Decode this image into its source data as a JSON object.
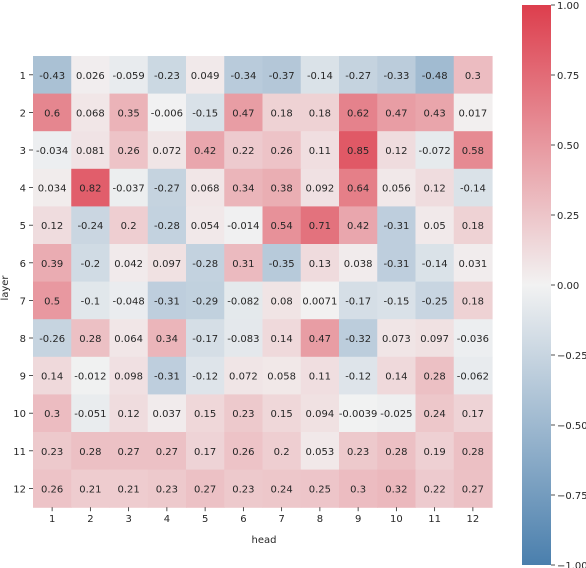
{
  "chart_data": {
    "type": "heatmap",
    "xlabel": "head",
    "ylabel": "layer",
    "x_categories": [
      "1",
      "2",
      "3",
      "4",
      "5",
      "6",
      "7",
      "8",
      "9",
      "10",
      "11",
      "12"
    ],
    "y_categories": [
      "1",
      "2",
      "3",
      "4",
      "5",
      "6",
      "7",
      "8",
      "9",
      "10",
      "11",
      "12"
    ],
    "values": [
      [
        -0.43,
        0.026,
        -0.059,
        -0.23,
        0.049,
        -0.34,
        -0.37,
        -0.14,
        -0.27,
        -0.33,
        -0.48,
        0.3
      ],
      [
        0.6,
        0.068,
        0.35,
        -0.006,
        -0.15,
        0.47,
        0.18,
        0.18,
        0.62,
        0.47,
        0.43,
        0.017
      ],
      [
        -0.034,
        0.081,
        0.26,
        0.072,
        0.42,
        0.22,
        0.26,
        0.11,
        0.85,
        0.12,
        -0.072,
        0.58
      ],
      [
        0.034,
        0.82,
        -0.037,
        -0.27,
        0.068,
        0.34,
        0.38,
        0.092,
        0.64,
        0.056,
        0.12,
        -0.14
      ],
      [
        0.12,
        -0.24,
        0.2,
        -0.28,
        0.054,
        -0.014,
        0.54,
        0.71,
        0.42,
        -0.31,
        0.05,
        0.18
      ],
      [
        0.39,
        -0.2,
        0.042,
        0.097,
        -0.28,
        0.31,
        -0.35,
        0.13,
        0.038,
        -0.31,
        -0.14,
        0.031
      ],
      [
        0.5,
        -0.1,
        -0.048,
        -0.31,
        -0.29,
        -0.082,
        0.08,
        0.0071,
        -0.17,
        -0.15,
        -0.25,
        0.18
      ],
      [
        -0.26,
        0.28,
        0.064,
        0.34,
        -0.17,
        -0.083,
        0.14,
        0.47,
        -0.32,
        0.073,
        0.097,
        -0.036
      ],
      [
        0.14,
        -0.012,
        0.098,
        -0.31,
        -0.12,
        0.072,
        0.058,
        0.11,
        -0.12,
        0.14,
        0.28,
        -0.062
      ],
      [
        0.3,
        -0.051,
        0.12,
        0.037,
        0.15,
        0.23,
        0.15,
        0.094,
        -0.0039,
        -0.025,
        0.24,
        0.17
      ],
      [
        0.23,
        0.28,
        0.27,
        0.27,
        0.17,
        0.26,
        0.2,
        0.053,
        0.23,
        0.28,
        0.19,
        0.28
      ],
      [
        0.26,
        0.21,
        0.21,
        0.23,
        0.27,
        0.23,
        0.24,
        0.25,
        0.3,
        0.32,
        0.22,
        0.27
      ]
    ],
    "value_labels": [
      [
        "-0.43",
        "0.026",
        "-0.059",
        "-0.23",
        "0.049",
        "-0.34",
        "-0.37",
        "-0.14",
        "-0.27",
        "-0.33",
        "-0.48",
        "0.3"
      ],
      [
        "0.6",
        "0.068",
        "0.35",
        "-0.006",
        "-0.15",
        "0.47",
        "0.18",
        "0.18",
        "0.62",
        "0.47",
        "0.43",
        "0.017"
      ],
      [
        "-0.034",
        "0.081",
        "0.26",
        "0.072",
        "0.42",
        "0.22",
        "0.26",
        "0.11",
        "0.85",
        "0.12",
        "-0.072",
        "0.58"
      ],
      [
        "0.034",
        "0.82",
        "-0.037",
        "-0.27",
        "0.068",
        "0.34",
        "0.38",
        "0.092",
        "0.64",
        "0.056",
        "0.12",
        "-0.14"
      ],
      [
        "0.12",
        "-0.24",
        "0.2",
        "-0.28",
        "0.054",
        "-0.014",
        "0.54",
        "0.71",
        "0.42",
        "-0.31",
        "0.05",
        "0.18"
      ],
      [
        "0.39",
        "-0.2",
        "0.042",
        "0.097",
        "-0.28",
        "0.31",
        "-0.35",
        "0.13",
        "0.038",
        "-0.31",
        "-0.14",
        "0.031"
      ],
      [
        "0.5",
        "-0.1",
        "-0.048",
        "-0.31",
        "-0.29",
        "-0.082",
        "0.08",
        "0.0071",
        "-0.17",
        "-0.15",
        "-0.25",
        "0.18"
      ],
      [
        "-0.26",
        "0.28",
        "0.064",
        "0.34",
        "-0.17",
        "-0.083",
        "0.14",
        "0.47",
        "-0.32",
        "0.073",
        "0.097",
        "-0.036"
      ],
      [
        "0.14",
        "-0.012",
        "0.098",
        "-0.31",
        "-0.12",
        "0.072",
        "0.058",
        "0.11",
        "-0.12",
        "0.14",
        "0.28",
        "-0.062"
      ],
      [
        "0.3",
        "-0.051",
        "0.12",
        "0.037",
        "0.15",
        "0.23",
        "0.15",
        "0.094",
        "-0.0039",
        "-0.025",
        "0.24",
        "0.17"
      ],
      [
        "0.23",
        "0.28",
        "0.27",
        "0.27",
        "0.17",
        "0.26",
        "0.2",
        "0.053",
        "0.23",
        "0.28",
        "0.19",
        "0.28"
      ],
      [
        "0.26",
        "0.21",
        "0.21",
        "0.23",
        "0.27",
        "0.23",
        "0.24",
        "0.25",
        "0.3",
        "0.32",
        "0.22",
        "0.27"
      ]
    ],
    "colorbar": {
      "range": [
        -1.0,
        1.0
      ],
      "ticks": [
        -1.0,
        -0.75,
        -0.5,
        -0.25,
        0.0,
        0.25,
        0.5,
        0.75,
        1.0
      ],
      "tick_labels": [
        "−1.00",
        "−0.75",
        "−0.50",
        "−0.25",
        "0.00",
        "0.25",
        "0.50",
        "0.75",
        "1.00"
      ],
      "colors": {
        "negative": "#4a7fad",
        "center": "#f2f2f2",
        "positive": "#dd3e4d"
      }
    },
    "grid": false,
    "legend": "colorbar-right"
  }
}
